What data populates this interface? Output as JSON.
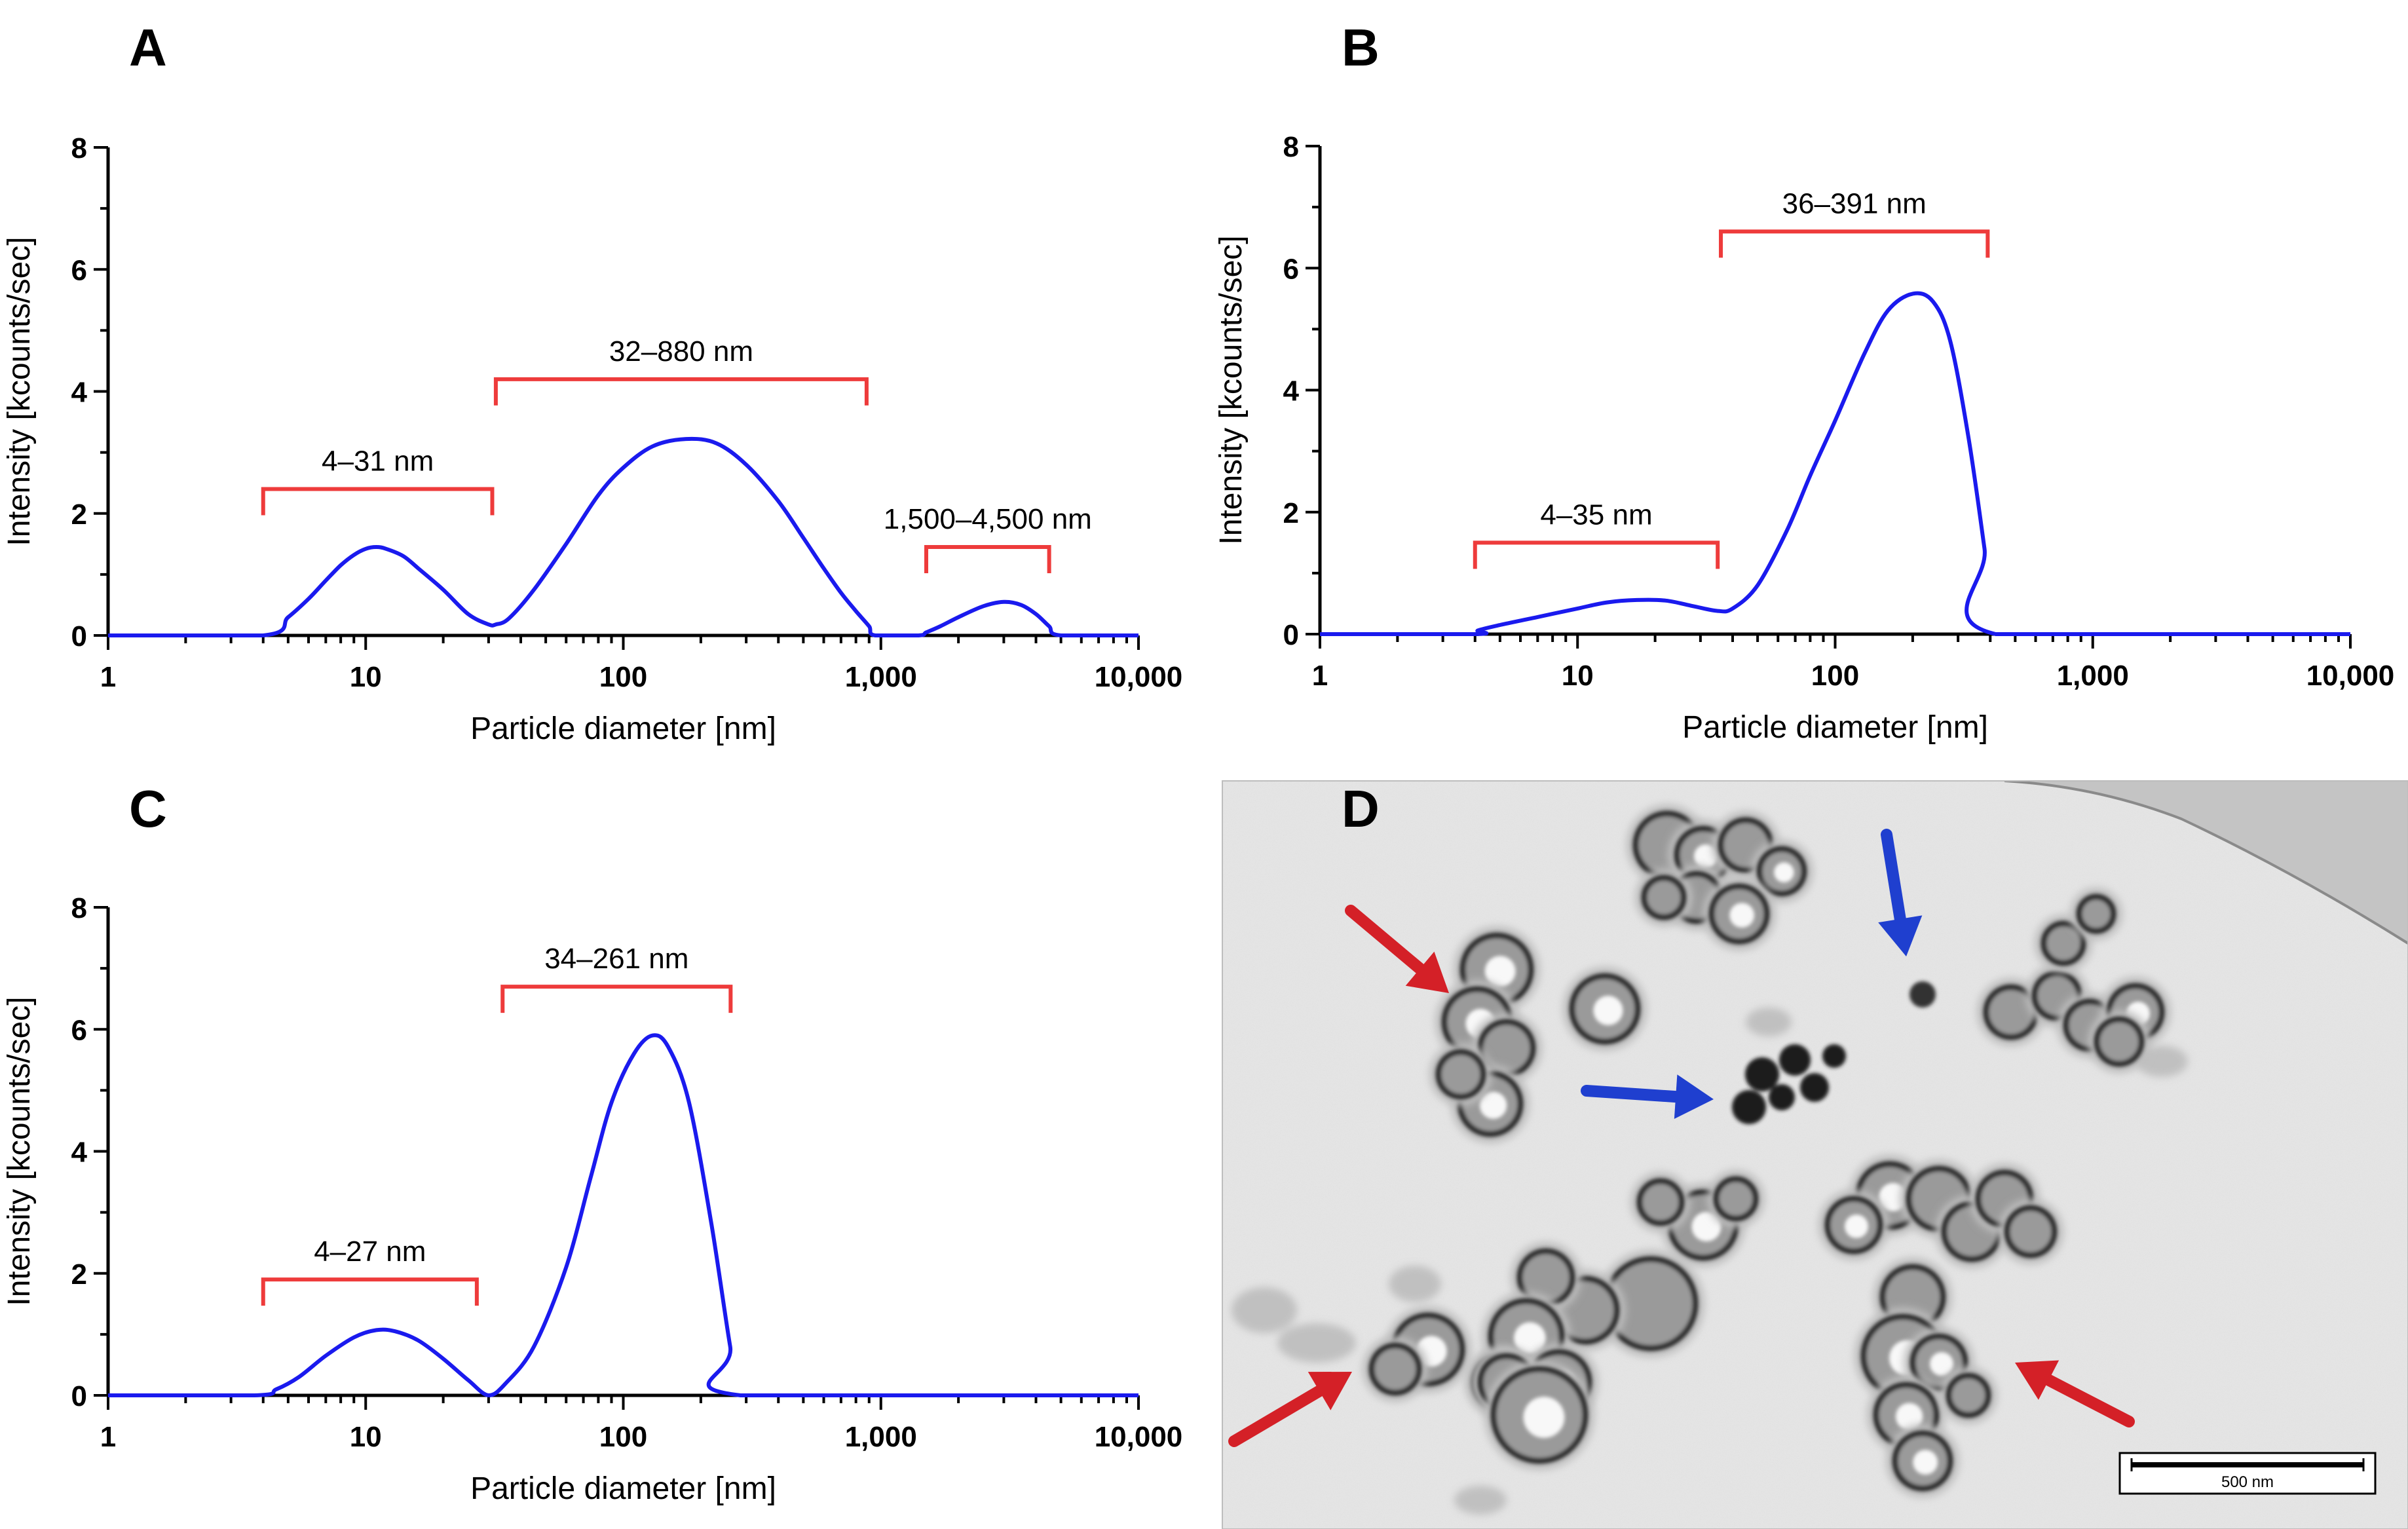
{
  "chart_data": [
    {
      "id": "A",
      "type": "line",
      "panel_label": "A",
      "xlabel": "Particle diameter [nm]",
      "ylabel": "Intensity [kcounts/sec]",
      "x_scale": "log",
      "xlim": [
        1,
        10000
      ],
      "ylim": [
        0,
        8
      ],
      "x_ticks": [
        1,
        10,
        100,
        1000,
        10000
      ],
      "x_tick_labels": [
        "1",
        "10",
        "100",
        "1,000",
        "10,000"
      ],
      "y_ticks": [
        0,
        2,
        4,
        6,
        8
      ],
      "y_tick_labels": [
        "0",
        "2",
        "4",
        "6",
        "8"
      ],
      "series": [
        {
          "name": "Intensity",
          "color": "#1a1aee",
          "x": [
            1,
            4,
            5,
            6,
            7,
            8,
            9,
            10,
            11,
            12,
            14,
            16,
            20,
            25,
            30,
            32,
            36,
            45,
            60,
            80,
            100,
            130,
            175,
            230,
            300,
            400,
            500,
            600,
            700,
            800,
            900,
            950,
            1400,
            1500,
            1700,
            2000,
            2500,
            3000,
            3500,
            4000,
            4500,
            5000,
            10000
          ],
          "y": [
            0,
            0,
            0.3,
            0.6,
            0.9,
            1.15,
            1.32,
            1.42,
            1.45,
            1.42,
            1.3,
            1.1,
            0.75,
            0.35,
            0.18,
            0.18,
            0.28,
            0.75,
            1.5,
            2.3,
            2.75,
            3.1,
            3.22,
            3.15,
            2.8,
            2.2,
            1.6,
            1.1,
            0.7,
            0.4,
            0.15,
            0,
            0,
            0.05,
            0.15,
            0.3,
            0.48,
            0.55,
            0.5,
            0.35,
            0.15,
            0,
            0
          ]
        }
      ],
      "ranges": [
        {
          "label": "4–31 nm",
          "start": 4,
          "end": 31,
          "level": 2.4
        },
        {
          "label": "32–880 nm",
          "start": 32,
          "end": 880,
          "level": 4.2
        },
        {
          "label": "1,500–4,500 nm",
          "start": 1500,
          "end": 4500,
          "level": 1.45
        }
      ]
    },
    {
      "id": "B",
      "type": "line",
      "panel_label": "B",
      "xlabel": "Particle diameter [nm]",
      "ylabel": "Intensity [kcounts/sec]",
      "x_scale": "log",
      "xlim": [
        1,
        10000
      ],
      "ylim": [
        0,
        8
      ],
      "x_ticks": [
        1,
        10,
        100,
        1000,
        10000
      ],
      "x_tick_labels": [
        "1",
        "10",
        "100",
        "1,000",
        "10,000"
      ],
      "y_ticks": [
        0,
        2,
        4,
        6,
        8
      ],
      "y_tick_labels": [
        "0",
        "2",
        "4",
        "6",
        "8"
      ],
      "series": [
        {
          "name": "Intensity",
          "color": "#1a1aee",
          "x": [
            1,
            4,
            4.1,
            5,
            7,
            10,
            13,
            17,
            22,
            28,
            35,
            40,
            50,
            65,
            80,
            100,
            130,
            160,
            200,
            240,
            280,
            330,
            380,
            420,
            10000
          ],
          "y": [
            0,
            0,
            0.06,
            0.15,
            0.28,
            0.42,
            0.52,
            0.56,
            0.55,
            0.46,
            0.38,
            0.42,
            0.8,
            1.7,
            2.6,
            3.5,
            4.6,
            5.3,
            5.58,
            5.45,
            4.8,
            3.2,
            1.4,
            0,
            0
          ]
        }
      ],
      "ranges": [
        {
          "label": "4–35 nm",
          "start": 4,
          "end": 35,
          "level": 1.5
        },
        {
          "label": "36–391 nm",
          "start": 36,
          "end": 391,
          "level": 6.6
        }
      ]
    },
    {
      "id": "C",
      "type": "line",
      "panel_label": "C",
      "xlabel": "Particle diameter [nm]",
      "ylabel": "Intensity [kcounts/sec]",
      "x_scale": "log",
      "xlim": [
        1,
        10000
      ],
      "ylim": [
        0,
        8
      ],
      "x_ticks": [
        1,
        10,
        100,
        1000,
        10000
      ],
      "x_tick_labels": [
        "1",
        "10",
        "100",
        "1,000",
        "10,000"
      ],
      "y_ticks": [
        0,
        2,
        4,
        6,
        8
      ],
      "y_tick_labels": [
        "0",
        "2",
        "4",
        "6",
        "8"
      ],
      "series": [
        {
          "name": "Intensity",
          "color": "#1a1aee",
          "x": [
            1,
            3.7,
            4.5,
            5.5,
            7,
            9,
            11,
            13,
            16,
            20,
            25,
            30,
            35,
            45,
            60,
            75,
            90,
            110,
            130,
            150,
            180,
            220,
            260,
            285,
            10000
          ],
          "y": [
            0,
            0,
            0.1,
            0.3,
            0.65,
            0.95,
            1.07,
            1.05,
            0.9,
            0.6,
            0.25,
            0,
            0.2,
            0.8,
            2.1,
            3.6,
            4.8,
            5.6,
            5.9,
            5.7,
            4.8,
            2.8,
            0.8,
            0,
            0
          ]
        }
      ],
      "ranges": [
        {
          "label": "4–27 nm",
          "start": 4,
          "end": 27,
          "level": 1.9
        },
        {
          "label": "34–261 nm",
          "start": 34,
          "end": 261,
          "level": 6.7
        }
      ]
    }
  ],
  "micrograph": {
    "panel_label": "D",
    "scale_bar_label": "500 nm",
    "red_arrow_color": "#d42027",
    "blue_arrow_color": "#1f3fcf"
  }
}
